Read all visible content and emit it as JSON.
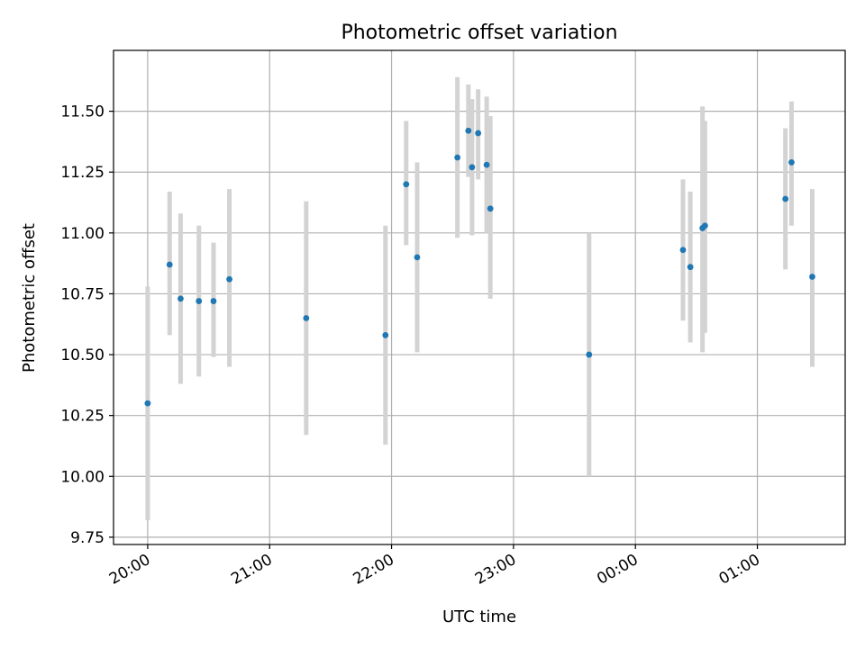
{
  "chart_data": {
    "type": "scatter",
    "title": "Photometric offset variation",
    "xlabel": "UTC time",
    "ylabel": "Photometric offset",
    "x_unit": "hours (UTC, relative to 20:00)",
    "xlim": [
      -0.28,
      5.72
    ],
    "ylim": [
      9.72,
      11.75
    ],
    "grid": true,
    "point_color": "#1f77b4",
    "errorbar_color": "#d3d3d3",
    "x_ticks": [
      {
        "value": 0,
        "label": "20:00"
      },
      {
        "value": 1,
        "label": "21:00"
      },
      {
        "value": 2,
        "label": "22:00"
      },
      {
        "value": 3,
        "label": "23:00"
      },
      {
        "value": 4,
        "label": "00:00"
      },
      {
        "value": 5,
        "label": "01:00"
      }
    ],
    "y_ticks": [
      {
        "value": 9.75,
        "label": "9.75"
      },
      {
        "value": 10.0,
        "label": "10.00"
      },
      {
        "value": 10.25,
        "label": "10.25"
      },
      {
        "value": 10.5,
        "label": "10.50"
      },
      {
        "value": 10.75,
        "label": "10.75"
      },
      {
        "value": 11.0,
        "label": "11.00"
      },
      {
        "value": 11.25,
        "label": "11.25"
      },
      {
        "value": 11.5,
        "label": "11.50"
      }
    ],
    "points": [
      {
        "x": 0.0,
        "y": 10.3,
        "ylo": 9.82,
        "yhi": 10.78
      },
      {
        "x": 0.18,
        "y": 10.87,
        "ylo": 10.58,
        "yhi": 11.17
      },
      {
        "x": 0.27,
        "y": 10.73,
        "ylo": 10.38,
        "yhi": 11.08
      },
      {
        "x": 0.42,
        "y": 10.72,
        "ylo": 10.41,
        "yhi": 11.03
      },
      {
        "x": 0.54,
        "y": 10.72,
        "ylo": 10.49,
        "yhi": 10.96
      },
      {
        "x": 0.67,
        "y": 10.81,
        "ylo": 10.45,
        "yhi": 11.18
      },
      {
        "x": 1.3,
        "y": 10.65,
        "ylo": 10.17,
        "yhi": 11.13
      },
      {
        "x": 1.95,
        "y": 10.58,
        "ylo": 10.13,
        "yhi": 11.03
      },
      {
        "x": 2.12,
        "y": 11.2,
        "ylo": 10.95,
        "yhi": 11.46
      },
      {
        "x": 2.21,
        "y": 10.9,
        "ylo": 10.51,
        "yhi": 11.29
      },
      {
        "x": 2.54,
        "y": 11.31,
        "ylo": 10.98,
        "yhi": 11.64
      },
      {
        "x": 2.63,
        "y": 11.42,
        "ylo": 11.23,
        "yhi": 11.61
      },
      {
        "x": 2.66,
        "y": 11.27,
        "ylo": 10.99,
        "yhi": 11.55
      },
      {
        "x": 2.71,
        "y": 11.41,
        "ylo": 11.22,
        "yhi": 11.59
      },
      {
        "x": 2.78,
        "y": 11.28,
        "ylo": 11.0,
        "yhi": 11.56
      },
      {
        "x": 2.81,
        "y": 11.1,
        "ylo": 10.73,
        "yhi": 11.48
      },
      {
        "x": 3.62,
        "y": 10.5,
        "ylo": 10.0,
        "yhi": 11.0
      },
      {
        "x": 4.39,
        "y": 10.93,
        "ylo": 10.64,
        "yhi": 11.22
      },
      {
        "x": 4.45,
        "y": 10.86,
        "ylo": 10.55,
        "yhi": 11.17
      },
      {
        "x": 4.55,
        "y": 11.02,
        "ylo": 10.51,
        "yhi": 11.52
      },
      {
        "x": 4.57,
        "y": 11.03,
        "ylo": 10.59,
        "yhi": 11.46
      },
      {
        "x": 5.23,
        "y": 11.14,
        "ylo": 10.85,
        "yhi": 11.43
      },
      {
        "x": 5.28,
        "y": 11.29,
        "ylo": 11.03,
        "yhi": 11.54
      },
      {
        "x": 5.45,
        "y": 10.82,
        "ylo": 10.45,
        "yhi": 11.18
      }
    ]
  }
}
